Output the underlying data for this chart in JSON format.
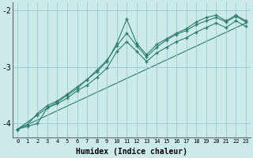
{
  "xlabel": "Humidex (Indice chaleur)",
  "background_color": "#cceaea",
  "grid_color": "#99cccc",
  "line_color": "#2e7d6e",
  "xlim": [
    -0.5,
    23.5
  ],
  "ylim": [
    -4.25,
    -1.85
  ],
  "yticks": [
    -4,
    -3,
    -2
  ],
  "xticks": [
    0,
    1,
    2,
    3,
    4,
    5,
    6,
    7,
    8,
    9,
    10,
    11,
    12,
    13,
    14,
    15,
    16,
    17,
    18,
    19,
    20,
    21,
    22,
    23
  ],
  "line1_x": [
    0,
    1,
    2,
    3,
    4,
    5,
    6,
    7,
    8,
    9,
    10,
    11,
    12,
    13,
    14,
    15,
    16,
    17,
    18,
    19,
    20,
    21,
    22,
    23
  ],
  "line1_y": [
    -4.1,
    -4.05,
    -4.0,
    -3.72,
    -3.65,
    -3.55,
    -3.42,
    -3.32,
    -3.18,
    -3.02,
    -2.72,
    -2.55,
    -2.72,
    -2.9,
    -2.75,
    -2.65,
    -2.55,
    -2.48,
    -2.38,
    -2.3,
    -2.22,
    -2.3,
    -2.18,
    -2.28
  ],
  "line2_x": [
    0,
    1,
    2,
    3,
    4,
    5,
    6,
    7,
    8,
    9,
    10,
    11,
    12,
    13,
    14,
    15,
    16,
    17,
    18,
    19,
    20,
    21,
    22,
    23
  ],
  "line2_y": [
    -4.1,
    -4.02,
    -3.82,
    -3.68,
    -3.6,
    -3.48,
    -3.35,
    -3.22,
    -3.05,
    -2.88,
    -2.62,
    -2.4,
    -2.62,
    -2.82,
    -2.65,
    -2.52,
    -2.42,
    -2.35,
    -2.25,
    -2.18,
    -2.12,
    -2.2,
    -2.1,
    -2.2
  ],
  "line3_x": [
    0,
    2,
    3,
    4,
    5,
    6,
    7,
    8,
    9,
    10,
    11,
    12,
    13,
    14,
    15,
    16,
    17,
    18,
    19,
    20,
    21,
    22,
    23
  ],
  "line3_y": [
    -4.1,
    -3.85,
    -3.72,
    -3.62,
    -3.5,
    -3.38,
    -3.22,
    -3.08,
    -2.9,
    -2.58,
    -2.15,
    -2.58,
    -2.78,
    -2.6,
    -2.5,
    -2.4,
    -2.32,
    -2.2,
    -2.12,
    -2.08,
    -2.18,
    -2.08,
    -2.18
  ],
  "line4_x": [
    0,
    23
  ],
  "line4_y": [
    -4.1,
    -2.22
  ]
}
